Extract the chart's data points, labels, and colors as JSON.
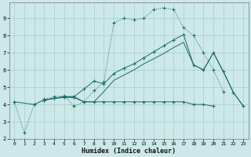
{
  "xlabel": "Humidex (Indice chaleur)",
  "bg_color": "#cce8e8",
  "grid_color": "#aacccc",
  "line_color": "#1a6b6b",
  "xlim": [
    -0.5,
    23.5
  ],
  "ylim": [
    2.0,
    9.9
  ],
  "yticks": [
    2,
    3,
    4,
    5,
    6,
    7,
    8,
    9
  ],
  "xticks": [
    0,
    1,
    2,
    3,
    4,
    5,
    6,
    7,
    8,
    9,
    10,
    11,
    12,
    13,
    14,
    15,
    16,
    17,
    18,
    19,
    20,
    21,
    22,
    23
  ],
  "line1_x": [
    0,
    1,
    2,
    3,
    4,
    5,
    6,
    7,
    8,
    9,
    10,
    11,
    12,
    13,
    14,
    15,
    16,
    17,
    18,
    19,
    20,
    21
  ],
  "line1_y": [
    4.15,
    2.35,
    4.0,
    4.3,
    4.45,
    4.5,
    3.9,
    4.15,
    4.8,
    5.3,
    8.75,
    9.0,
    8.9,
    9.0,
    9.5,
    9.6,
    9.5,
    8.45,
    8.0,
    7.0,
    6.0,
    4.75
  ],
  "line2_x": [
    0,
    2,
    3,
    4,
    5,
    6,
    7,
    8,
    9,
    10,
    11,
    12,
    13,
    14,
    15,
    16,
    17,
    18,
    19,
    20
  ],
  "line2_y": [
    4.15,
    4.0,
    4.25,
    4.35,
    4.4,
    4.4,
    4.15,
    4.15,
    4.15,
    4.15,
    4.15,
    4.15,
    4.15,
    4.15,
    4.15,
    4.15,
    4.15,
    4.0,
    4.0,
    3.9
  ],
  "line3_x": [
    3,
    4,
    5,
    6,
    7,
    8,
    9,
    10,
    11,
    12,
    13,
    14,
    15,
    16,
    17,
    18,
    19,
    20,
    21,
    22,
    23
  ],
  "line3_y": [
    4.25,
    4.35,
    4.45,
    4.45,
    4.9,
    5.35,
    5.2,
    5.8,
    6.1,
    6.35,
    6.7,
    7.05,
    7.4,
    7.75,
    8.05,
    6.3,
    6.0,
    7.0,
    5.9,
    4.7,
    3.9
  ],
  "line4_x": [
    3,
    4,
    5,
    6,
    7,
    8,
    9,
    10,
    11,
    12,
    13,
    14,
    15,
    16,
    17,
    18,
    19,
    20,
    21,
    22,
    23
  ],
  "line4_y": [
    4.25,
    4.35,
    4.45,
    4.45,
    4.15,
    4.15,
    4.75,
    5.4,
    5.7,
    6.0,
    6.35,
    6.65,
    6.95,
    7.3,
    7.6,
    6.3,
    6.0,
    7.0,
    5.9,
    4.7,
    3.9
  ]
}
